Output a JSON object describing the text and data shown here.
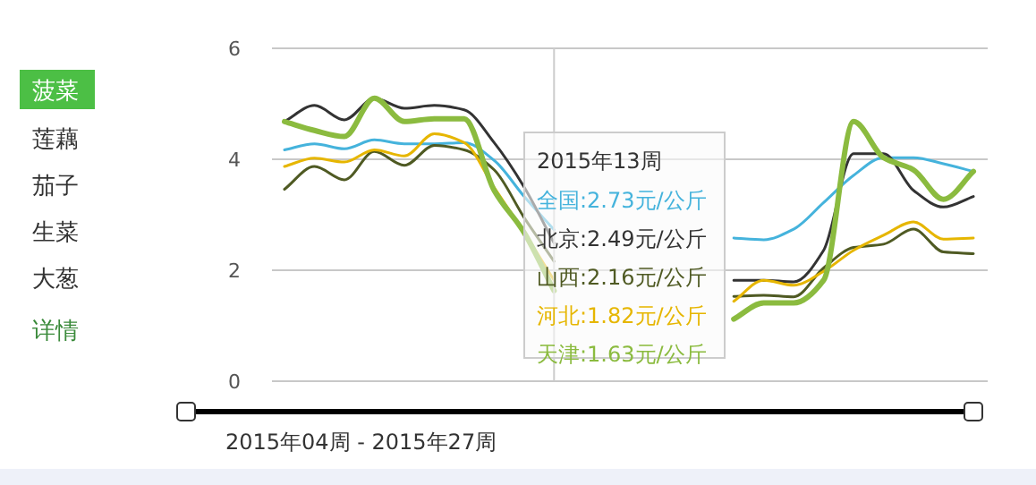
{
  "chart_data": {
    "type": "line",
    "categories": [
      null,
      null,
      null,
      null,
      null,
      null,
      null,
      null,
      null,
      null,
      null,
      null,
      null,
      null,
      null,
      null,
      null,
      null,
      null,
      null,
      null,
      null,
      null,
      null
    ],
    "series": [
      {
        "name": "全国",
        "color": "#45b3dc",
        "values": [
          4.17,
          4.28,
          4.19,
          4.35,
          4.28,
          4.28,
          4.3,
          3.98,
          3.33,
          2.73,
          null,
          null,
          null,
          null,
          null,
          2.58,
          2.55,
          2.74,
          3.22,
          3.71,
          4.03,
          4.03,
          3.92,
          3.78
        ],
        "value_labels": [
          null,
          null,
          null,
          null,
          null,
          null,
          null,
          null,
          null,
          ":2.73元/公斤",
          null,
          null,
          null,
          null,
          null,
          null,
          null,
          null,
          null,
          null,
          null,
          null,
          null,
          null
        ]
      },
      {
        "name": "北京",
        "color": "#333333",
        "values": [
          4.68,
          4.97,
          4.71,
          5.1,
          4.92,
          4.97,
          4.89,
          4.3,
          3.5,
          2.49,
          null,
          null,
          null,
          null,
          null,
          1.82,
          1.82,
          1.79,
          2.36,
          4.1,
          4.1,
          3.44,
          3.14,
          3.33
        ],
        "value_labels": [
          null,
          null,
          null,
          null,
          null,
          null,
          null,
          null,
          null,
          ":2.49元/公斤",
          null,
          null,
          null,
          null,
          null,
          null,
          null,
          null,
          null,
          null,
          null,
          null,
          null,
          null
        ]
      },
      {
        "name": "山西",
        "color": "#4f5a23",
        "values": [
          3.46,
          3.87,
          3.63,
          4.14,
          3.89,
          4.25,
          4.17,
          3.81,
          2.95,
          2.16,
          null,
          null,
          null,
          null,
          null,
          1.53,
          1.55,
          1.52,
          2.04,
          2.41,
          2.47,
          2.74,
          2.33,
          2.3
        ],
        "value_labels": [
          null,
          null,
          null,
          null,
          null,
          null,
          null,
          null,
          null,
          ":2.16元/公斤",
          null,
          null,
          null,
          null,
          null,
          null,
          null,
          null,
          null,
          null,
          null,
          null,
          null,
          null
        ]
      },
      {
        "name": "河北",
        "color": "#e6b600",
        "values": [
          3.87,
          4.02,
          3.95,
          4.17,
          4.06,
          4.46,
          4.3,
          3.49,
          2.68,
          1.82,
          null,
          null,
          null,
          null,
          null,
          1.44,
          1.82,
          1.73,
          1.98,
          2.36,
          2.63,
          2.87,
          2.56,
          2.58
        ],
        "value_labels": [
          null,
          null,
          null,
          null,
          null,
          null,
          null,
          null,
          null,
          ":1.82元/公斤",
          null,
          null,
          null,
          null,
          null,
          null,
          null,
          null,
          null,
          null,
          null,
          null,
          null,
          null
        ]
      },
      {
        "name": "天津",
        "color": "#8bbb3f",
        "values": [
          4.68,
          4.52,
          4.41,
          5.1,
          4.68,
          4.73,
          4.73,
          3.44,
          2.68,
          1.63,
          null,
          null,
          null,
          null,
          null,
          1.12,
          1.41,
          1.41,
          1.82,
          4.68,
          4.03,
          3.81,
          3.28,
          3.78
        ],
        "value_labels": [
          null,
          null,
          null,
          null,
          null,
          null,
          null,
          null,
          null,
          ":1.63元/公斤",
          null,
          null,
          null,
          null,
          null,
          null,
          null,
          null,
          null,
          null,
          null,
          null,
          null,
          null
        ]
      }
    ],
    "ylim": [
      0,
      6
    ],
    "yticks": [
      0,
      2,
      4,
      6
    ],
    "grid": "y",
    "tick_labels": "y",
    "marker": "none",
    "line_style": "solid",
    "annotations": [
      "菠菜",
      "莲藕",
      "茄子",
      "生菜",
      "大葱",
      "详情",
      "2015年13周",
      "2015年04周 - 2015年27周"
    ]
  }
}
